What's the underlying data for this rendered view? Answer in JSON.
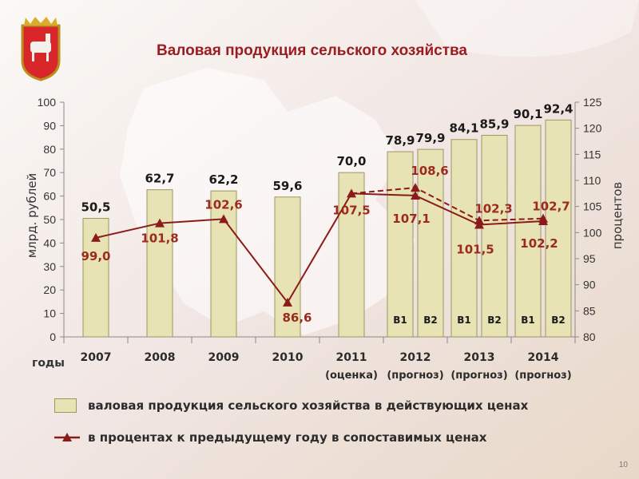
{
  "title": "Валовая продукция сельского хозяйства",
  "page_number": "10",
  "colors": {
    "bar_fill": "#e8e3b4",
    "bar_edge": "#9c9660",
    "line": "#8b1a1a",
    "label_bar": "#1a1a1a",
    "label_line": "#9b2b1c",
    "title": "#9b1c22"
  },
  "icons": {
    "emblem": "chelyabinsk-coat-of-arms-icon",
    "line_marker": "triangle-marker-icon"
  },
  "chart_data": {
    "type": "bar",
    "title": "Валовая продукция сельского хозяйства",
    "ylabel_left": "млрд. рублей",
    "ylabel_right": "процентов",
    "xlabel": "годы",
    "ylim_left": [
      0,
      100
    ],
    "ylim_right": [
      80,
      125
    ],
    "yticks_left": [
      "0",
      "10",
      "20",
      "30",
      "40",
      "50",
      "60",
      "70",
      "80",
      "90",
      "100"
    ],
    "yticks_right": [
      "80",
      "85",
      "90",
      "95",
      "100",
      "105",
      "110",
      "115",
      "120",
      "125"
    ],
    "grid": false,
    "legend_position": "bottom",
    "groups": [
      {
        "year": "2007",
        "sub": ""
      },
      {
        "year": "2008",
        "sub": ""
      },
      {
        "year": "2009",
        "sub": ""
      },
      {
        "year": "2010",
        "sub": ""
      },
      {
        "year": "2011",
        "sub": "(оценка)"
      },
      {
        "year": "2012",
        "sub": "(прогноз)"
      },
      {
        "year": "2013",
        "sub": "(прогноз)"
      },
      {
        "year": "2014",
        "sub": "(прогноз)"
      }
    ],
    "bars": [
      {
        "group": 0,
        "variant": "",
        "value": 50.5,
        "label": "50,5"
      },
      {
        "group": 1,
        "variant": "",
        "value": 62.7,
        "label": "62,7"
      },
      {
        "group": 2,
        "variant": "",
        "value": 62.2,
        "label": "62,2"
      },
      {
        "group": 3,
        "variant": "",
        "value": 59.6,
        "label": "59,6"
      },
      {
        "group": 4,
        "variant": "",
        "value": 70.0,
        "label": "70,0"
      },
      {
        "group": 5,
        "variant": "В1",
        "value": 78.9,
        "label": "78,9"
      },
      {
        "group": 5,
        "variant": "В2",
        "value": 79.9,
        "label": "79,9"
      },
      {
        "group": 6,
        "variant": "В1",
        "value": 84.1,
        "label": "84,1"
      },
      {
        "group": 6,
        "variant": "В2",
        "value": 85.9,
        "label": "85,9"
      },
      {
        "group": 7,
        "variant": "В1",
        "value": 90.1,
        "label": "90,1"
      },
      {
        "group": 7,
        "variant": "В2",
        "value": 92.4,
        "label": "92,4"
      }
    ],
    "line_solid": [
      {
        "group": 0,
        "value": 99.0,
        "label": "99,0"
      },
      {
        "group": 1,
        "value": 101.8,
        "label": "101,8"
      },
      {
        "group": 2,
        "value": 102.6,
        "label": "102,6"
      },
      {
        "group": 3,
        "value": 86.6,
        "label": "86,6"
      },
      {
        "group": 4,
        "value": 107.5,
        "label": "107,5"
      },
      {
        "group": 5,
        "value": 107.1,
        "label": "107,1"
      },
      {
        "group": 6,
        "value": 101.5,
        "label": "101,5"
      },
      {
        "group": 7,
        "value": 102.2,
        "label": "102,2"
      }
    ],
    "line_dashed": [
      {
        "group": 4,
        "value": 107.5,
        "label": ""
      },
      {
        "group": 5,
        "value": 108.6,
        "label": "108,6"
      },
      {
        "group": 6,
        "value": 102.3,
        "label": "102,3"
      },
      {
        "group": 7,
        "value": 102.7,
        "label": "102,7"
      }
    ],
    "legend": [
      {
        "kind": "bar",
        "label": "валовая продукция сельского хозяйства в действующих ценах"
      },
      {
        "kind": "line",
        "label": "в процентах к предыдущему году в сопоставимых ценах"
      }
    ]
  }
}
